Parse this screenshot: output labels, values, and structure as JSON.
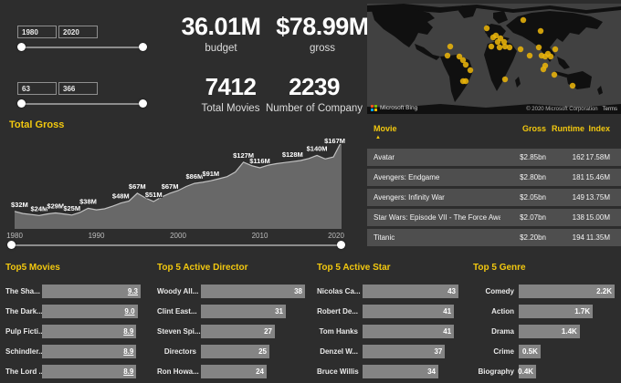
{
  "slicers": {
    "year": {
      "from": "1980",
      "to": "2020"
    },
    "runtime": {
      "from": "63",
      "to": "366"
    }
  },
  "kpis": [
    {
      "value": "36.01M",
      "label": "budget"
    },
    {
      "value": "$78.99M",
      "label": "gross"
    },
    {
      "value": "7412",
      "label": "Total Movies"
    },
    {
      "value": "2239",
      "label": "Number of Company"
    }
  ],
  "map": {
    "provider": "Microsoft Bing",
    "attribution": "© 2020 Microsoft Corporation",
    "terms_label": "Terms",
    "dot_color": "#e8b30a",
    "points": [
      [
        131,
        27
      ],
      [
        171,
        18
      ],
      [
        190,
        30
      ],
      [
        141,
        35
      ],
      [
        138,
        37
      ],
      [
        146,
        38
      ],
      [
        143,
        42
      ],
      [
        150,
        42
      ],
      [
        136,
        47
      ],
      [
        145,
        48
      ],
      [
        151,
        47
      ],
      [
        156,
        48
      ],
      [
        91,
        47
      ],
      [
        88,
        57
      ],
      [
        101,
        58
      ],
      [
        105,
        62
      ],
      [
        108,
        67
      ],
      [
        113,
        73
      ],
      [
        105,
        85
      ],
      [
        108,
        85
      ],
      [
        151,
        83
      ],
      [
        168,
        50
      ],
      [
        178,
        57
      ],
      [
        188,
        48
      ],
      [
        191,
        57
      ],
      [
        195,
        58
      ],
      [
        198,
        55
      ],
      [
        201,
        58
      ],
      [
        206,
        50
      ],
      [
        195,
        68
      ],
      [
        193,
        72
      ],
      [
        205,
        78
      ],
      [
        225,
        90
      ]
    ]
  },
  "table": {
    "columns": [
      "Movie",
      "Gross",
      "Runtime",
      "Index"
    ],
    "sort_icon": "▲",
    "rows": [
      [
        "Avatar",
        "$2.85bn",
        "162",
        "17.58M"
      ],
      [
        "Avengers: Endgame",
        "$2.80bn",
        "181",
        "15.46M"
      ],
      [
        "Avengers: Infinity War",
        "$2.05bn",
        "149",
        "13.75M"
      ],
      [
        "Star Wars: Episode VII - The Force Awakens",
        "$2.07bn",
        "138",
        "15.00M"
      ],
      [
        "Titanic",
        "$2.20bn",
        "194",
        "11.35M"
      ]
    ]
  },
  "chart_data": [
    {
      "type": "area",
      "title": "Total Gross",
      "x": [
        1980,
        1981,
        1982,
        1983,
        1984,
        1985,
        1986,
        1987,
        1988,
        1989,
        1990,
        1991,
        1992,
        1993,
        1994,
        1995,
        1996,
        1997,
        1998,
        1999,
        2000,
        2001,
        2002,
        2003,
        2004,
        2005,
        2006,
        2007,
        2008,
        2009,
        2010,
        2011,
        2012,
        2013,
        2014,
        2015,
        2016,
        2017,
        2018,
        2019,
        2020
      ],
      "values": [
        32,
        28,
        26,
        24,
        27,
        29,
        27,
        25,
        30,
        38,
        35,
        37,
        42,
        48,
        52,
        67,
        58,
        51,
        60,
        67,
        72,
        80,
        86,
        88,
        91,
        95,
        99,
        108,
        127,
        120,
        116,
        121,
        124,
        126,
        128,
        130,
        134,
        140,
        133,
        137,
        167
      ],
      "point_labels": [
        "$32M",
        null,
        null,
        "$24M",
        null,
        "$29M",
        null,
        "$25M",
        null,
        "$38M",
        null,
        null,
        null,
        "$48M",
        null,
        "$67M",
        null,
        "$51M",
        null,
        "$67M",
        null,
        null,
        "$86M",
        null,
        "$91M",
        null,
        null,
        null,
        "$127M",
        null,
        "$116M",
        null,
        null,
        null,
        "$128M",
        null,
        null,
        "$140M",
        null,
        null,
        "$167M"
      ],
      "xticks": [
        "1980",
        "1990",
        "2000",
        "2010",
        "2020"
      ],
      "ylim": [
        0,
        180
      ],
      "xlabel": "",
      "ylabel": ""
    },
    {
      "type": "bar",
      "title": "Top5 Movies",
      "orientation": "horizontal",
      "categories": [
        "The Sha...",
        "The Dark...",
        "Pulp Ficti...",
        "Schindler...",
        "The Lord ..."
      ],
      "values": [
        9.3,
        9.0,
        8.9,
        8.9,
        8.9
      ],
      "value_labels": [
        "9.3",
        "9.0",
        "8.9",
        "8.9",
        "8.9"
      ]
    },
    {
      "type": "bar",
      "title": "Top 5 Active Director",
      "orientation": "horizontal",
      "categories": [
        "Woody All...",
        "Clint East...",
        "Steven Spi...",
        "Directors",
        "Ron Howa..."
      ],
      "values": [
        38,
        31,
        27,
        25,
        24
      ],
      "value_labels": [
        "38",
        "31",
        "27",
        "25",
        "24"
      ]
    },
    {
      "type": "bar",
      "title": "Top 5 Active Star",
      "orientation": "horizontal",
      "categories": [
        "Nicolas Ca...",
        "Robert De...",
        "Tom Hanks",
        "Denzel W...",
        "Bruce Willis"
      ],
      "values": [
        43,
        41,
        41,
        37,
        34
      ],
      "value_labels": [
        "43",
        "41",
        "41",
        "37",
        "34"
      ]
    },
    {
      "type": "bar",
      "title": "Top 5 Genre",
      "orientation": "horizontal",
      "categories": [
        "Comedy",
        "Action",
        "Drama",
        "Crime",
        "Biography"
      ],
      "values": [
        2200,
        1700,
        1400,
        500,
        400
      ],
      "value_labels": [
        "2.2K",
        "1.7K",
        "1.4K",
        "0.5K",
        "0.4K"
      ]
    }
  ]
}
